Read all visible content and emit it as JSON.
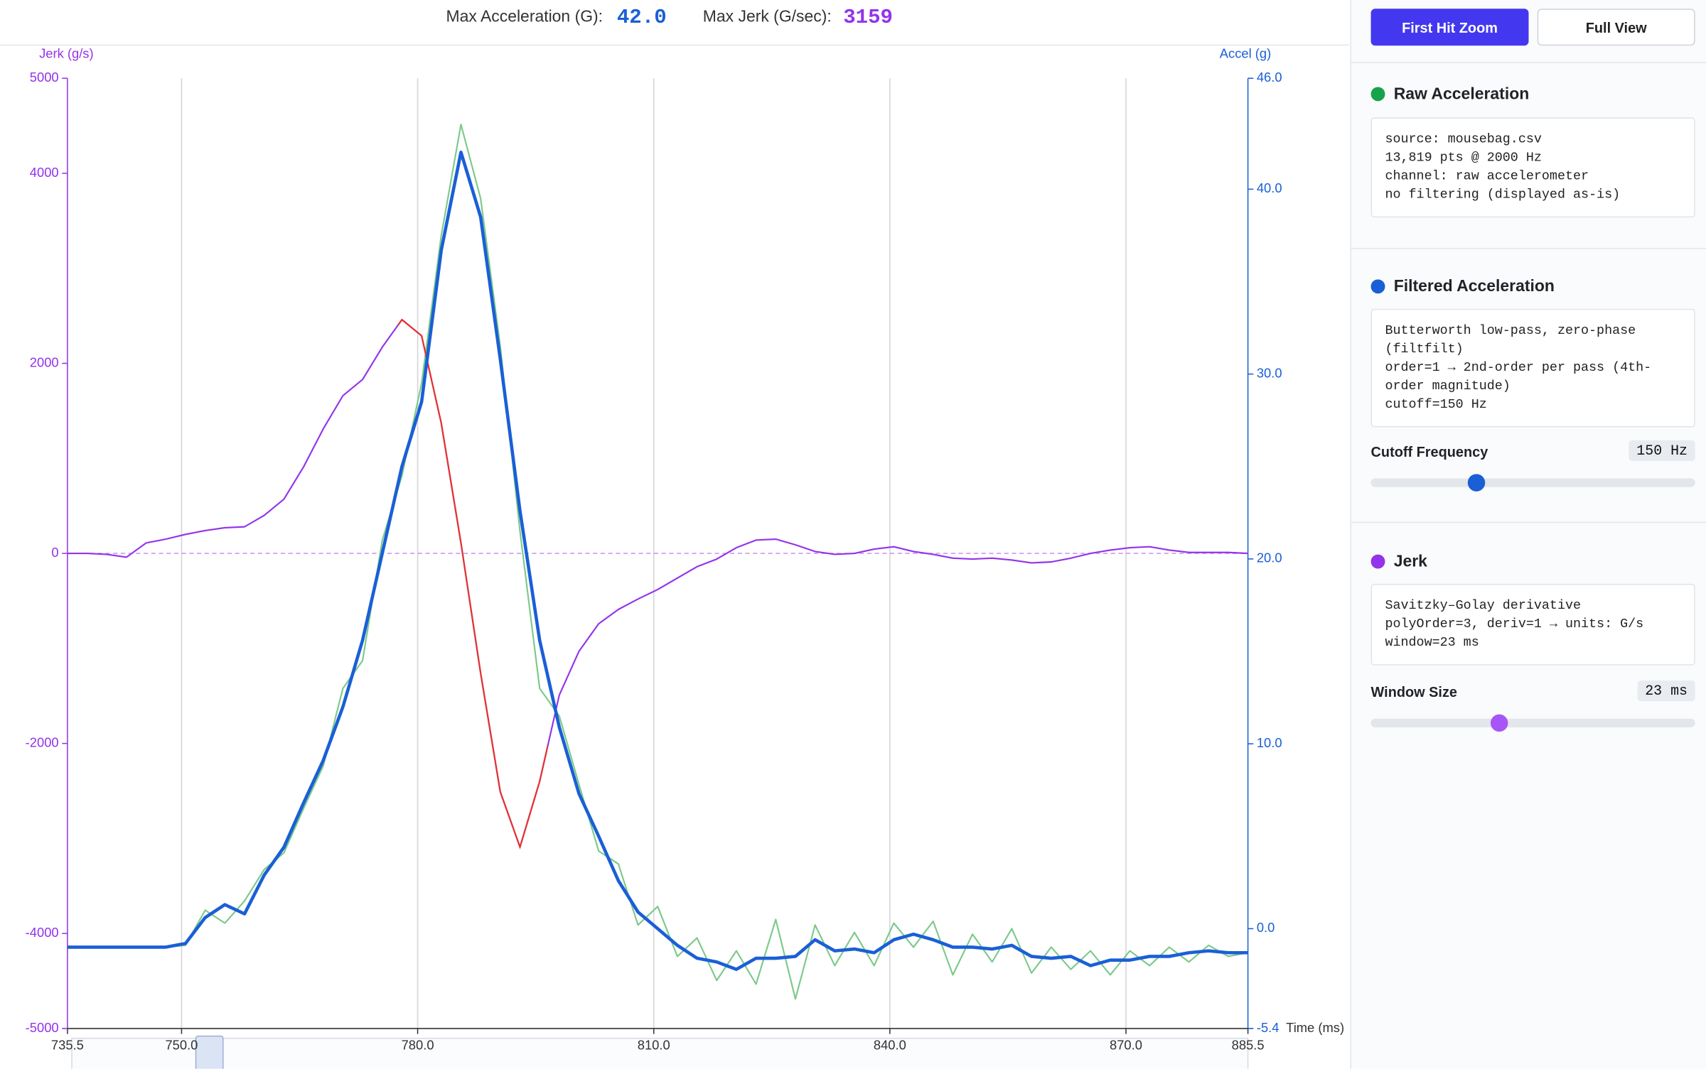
{
  "header": {
    "stats": [
      {
        "label": "Max Acceleration (G):",
        "value": "42.0"
      },
      {
        "label": "Max Jerk (G/sec):",
        "value": "3159"
      }
    ]
  },
  "buttons": [
    "First Hit Zoom",
    "Full View"
  ],
  "panels": [
    {
      "info": [
        "source: mousebag.csv",
        "13,819 pts @ 2000 Hz",
        "channel: raw accelerometer",
        "no filtering (displayed as-is)"
      ]
    },
    {
      "info": [
        "Butterworth low-pass, zero-phase (filtfilt)",
        "order=1 → 2nd-order per pass (4th-order magnitude)",
        "cutoff=150 Hz"
      ],
      "control": {
        "label": "Cutoff Frequency",
        "value": "150 Hz"
      }
    },
    {
      "info": [
        "Savitzky–Golay derivative",
        "polyOrder=3, deriv=1 → units: G/s",
        "window=23 ms"
      ],
      "control": {
        "label": "Window Size",
        "value": "23 ms"
      }
    }
  ],
  "chart_data": {
    "type": "line",
    "xlabel": "Time (ms)",
    "ylabel": "Jerk (g/s)",
    "y2label": "Accel (g)",
    "grid": "x",
    "zero_line": true,
    "xlim": [
      735.5,
      885.5
    ],
    "xticks": [
      735.5,
      {
        "value": 750,
        "label": "750.0"
      },
      {
        "value": 780,
        "label": "780.0"
      },
      {
        "value": 810,
        "label": "810.0"
      },
      {
        "value": 840,
        "label": "840.0"
      },
      {
        "value": 870,
        "label": "870.0"
      },
      885.5
    ],
    "ylim": [
      -5000,
      5000
    ],
    "yticks": [
      -5000,
      -4000,
      -2000,
      0,
      2000,
      4000,
      5000
    ],
    "y2lim": [
      -5.4,
      46.0
    ],
    "y2ticks": [
      -5.4,
      {
        "value": 0,
        "label": "0.0"
      },
      {
        "value": 10,
        "label": "10.0"
      },
      {
        "value": 20,
        "label": "20.0"
      },
      {
        "value": 30,
        "label": "30.0"
      },
      {
        "value": 40,
        "label": "40.0"
      },
      {
        "value": 46,
        "label": "46.0"
      }
    ],
    "x": [
      735.5,
      738,
      740.5,
      743,
      745.5,
      748,
      750.5,
      753,
      755.5,
      758,
      760.5,
      763,
      765.5,
      768,
      770.5,
      773,
      775.5,
      778,
      780.5,
      783,
      785.5,
      788,
      790.5,
      793,
      795.5,
      798,
      800.5,
      803,
      805.5,
      808,
      810.5,
      813,
      815.5,
      818,
      820.5,
      823,
      825.5,
      828,
      830.5,
      833,
      835.5,
      838,
      840.5,
      843,
      845.5,
      848,
      850.5,
      853,
      855.5,
      858,
      860.5,
      863,
      865.5,
      868,
      870.5,
      873,
      875.5,
      878,
      880.5,
      883,
      885.5
    ],
    "series": [
      {
        "name": "Raw Acceleration",
        "color": "#7cc98a",
        "axis": "y2",
        "values": [
          -1.0,
          -1.0,
          -1.0,
          -1.0,
          -1.0,
          -1.0,
          -0.9,
          1.0,
          0.3,
          1.5,
          3.2,
          4.1,
          6.5,
          8.8,
          13.0,
          14.5,
          21.0,
          24.5,
          29.5,
          37.5,
          43.5,
          39.5,
          31.5,
          21.5,
          13.0,
          11.5,
          7.8,
          4.2,
          3.5,
          0.2,
          1.2,
          -1.5,
          -0.5,
          -2.8,
          -1.2,
          -3.0,
          0.5,
          -3.8,
          0.2,
          -2.0,
          -0.2,
          -2.0,
          0.3,
          -1.0,
          0.4,
          -2.5,
          -0.3,
          -1.8,
          0.0,
          -2.4,
          -1.0,
          -2.2,
          -1.2,
          -2.5,
          -1.2,
          -2.0,
          -1.0,
          -1.8,
          -0.9,
          -1.5,
          -1.3
        ]
      },
      {
        "name": "Filtered Acceleration",
        "color": "#1a5fd6",
        "axis": "y2",
        "values": [
          -1.0,
          -1.0,
          -1.0,
          -1.0,
          -1.0,
          -1.0,
          -0.8,
          0.6,
          1.3,
          0.8,
          2.9,
          4.4,
          6.8,
          9.1,
          12.0,
          15.6,
          20.3,
          25.0,
          28.5,
          36.7,
          42.0,
          38.5,
          30.8,
          22.6,
          15.6,
          10.9,
          7.3,
          5.0,
          2.6,
          0.9,
          0,
          -0.9,
          -1.6,
          -1.8,
          -2.2,
          -1.6,
          -1.6,
          -1.5,
          -0.6,
          -1.2,
          -1.1,
          -1.3,
          -0.6,
          -0.3,
          -0.6,
          -1.0,
          -1.0,
          -1.1,
          -0.9,
          -1.5,
          -1.6,
          -1.5,
          -2.0,
          -1.7,
          -1.7,
          -1.5,
          -1.5,
          -1.3,
          -1.2,
          -1.3,
          -1.3
        ]
      },
      {
        "name": "Jerk",
        "color": "#9333ea",
        "axis": "y",
        "highlight_color": "#e5332a",
        "highlight_xlim": [
          777.5,
          796.5
        ],
        "values": [
          0,
          0,
          -10,
          -40,
          110,
          150,
          200,
          240,
          270,
          280,
          400,
          570,
          910,
          1310,
          1660,
          1830,
          2170,
          2460,
          2290,
          1370,
          110,
          -1260,
          -2510,
          -3090,
          -2400,
          -1490,
          -1030,
          -740,
          -590,
          -480,
          -380,
          -260,
          -140,
          -60,
          60,
          140,
          150,
          90,
          20,
          -10,
          0,
          45,
          70,
          20,
          -10,
          -50,
          -60,
          -50,
          -70,
          -100,
          -90,
          -50,
          0,
          35,
          60,
          70,
          35,
          10,
          10,
          10,
          0
        ]
      }
    ]
  }
}
